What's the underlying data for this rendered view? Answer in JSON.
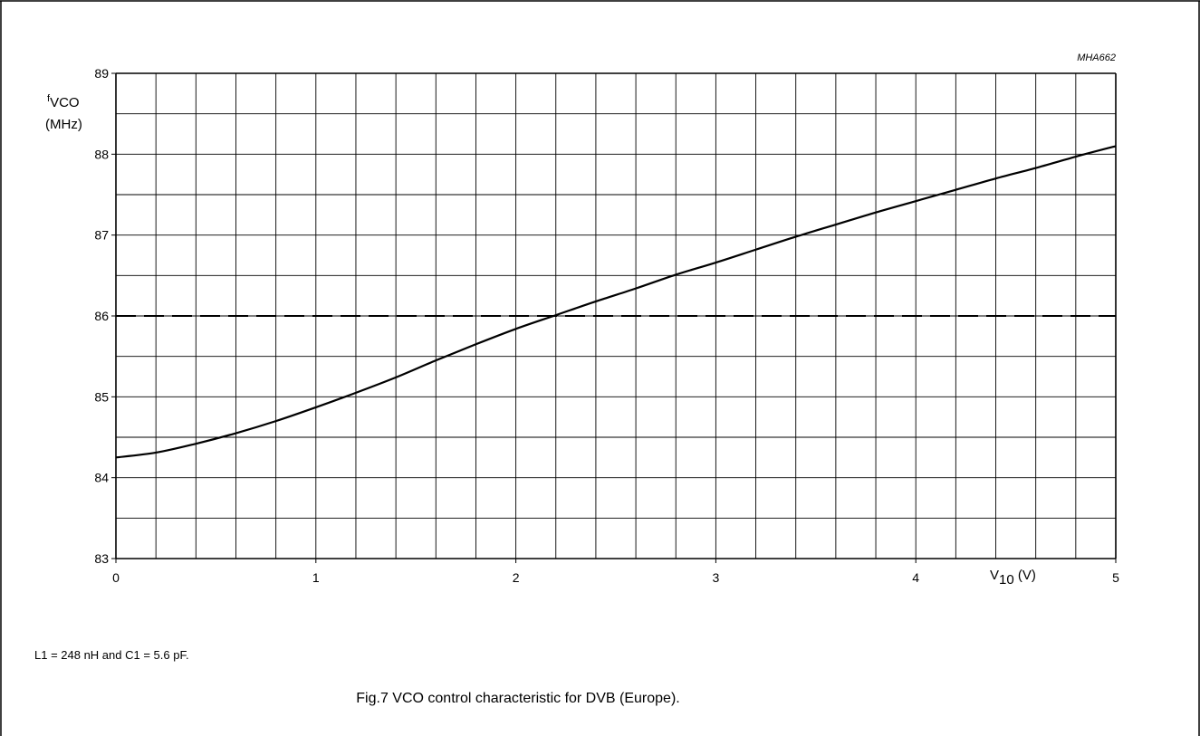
{
  "figure": {
    "code": "MHA662",
    "note": "L1 = 248 nH and C1 = 5.6 pF.",
    "caption": "Fig.7  VCO control characteristic for DVB (Europe)."
  },
  "chart_data": {
    "type": "line",
    "title": "",
    "ylabel": {
      "main": "f",
      "sub": "VCO",
      "unit": "(MHz)"
    },
    "xlabel": {
      "main": "V",
      "sub": "10",
      "unit": " (V)"
    },
    "xlim": [
      0,
      5
    ],
    "ylim": [
      83,
      89
    ],
    "x_ticks": [
      "0",
      "1",
      "2",
      "3",
      "4",
      "5"
    ],
    "y_ticks": [
      "83",
      "84",
      "85",
      "86",
      "87",
      "88",
      "89"
    ],
    "x_minor_step": 0.2,
    "y_minor_step": 0.5,
    "grid": true,
    "series": [
      {
        "x": [
          0,
          0.2,
          0.4,
          0.6,
          0.8,
          1.0,
          1.2,
          1.4,
          1.6,
          1.8,
          2.0,
          2.2,
          2.4,
          2.6,
          2.8,
          3.0,
          3.2,
          3.4,
          3.6,
          3.8,
          4.0,
          4.2,
          4.4,
          4.6,
          4.8,
          5.0
        ],
        "y": [
          84.25,
          84.31,
          84.42,
          84.55,
          84.7,
          84.87,
          85.05,
          85.24,
          85.45,
          85.65,
          85.84,
          86.01,
          86.18,
          86.34,
          86.51,
          86.66,
          86.82,
          86.98,
          87.13,
          87.28,
          87.42,
          87.56,
          87.7,
          87.83,
          87.97,
          88.1
        ]
      }
    ],
    "reference_line": {
      "y": 86,
      "style": "dashed"
    }
  }
}
